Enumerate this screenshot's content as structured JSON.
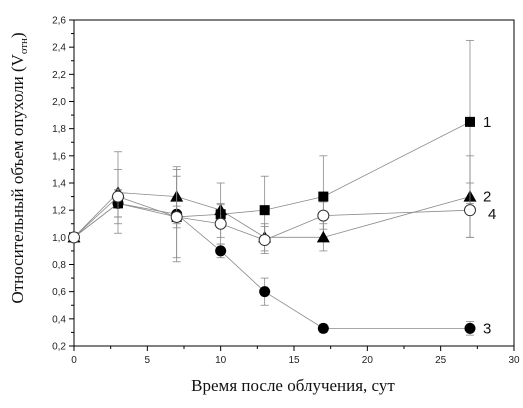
{
  "chart_data": {
    "type": "line",
    "xlabel": "Время после облучения, сут",
    "ylabel": "Относительный объем опухоли (V",
    "ylabel_sub": "отн",
    "ylabel_tail": ")",
    "xlim": [
      0,
      30
    ],
    "ylim": [
      0.2,
      2.6
    ],
    "x_ticks": [
      0,
      5,
      10,
      15,
      20,
      25,
      30
    ],
    "x_tick_labels": [
      "0",
      "5",
      "10",
      "15",
      "20",
      "25",
      "30"
    ],
    "y_ticks": [
      0.2,
      0.4,
      0.6,
      0.8,
      1.0,
      1.2,
      1.4,
      1.6,
      1.8,
      2.0,
      2.2,
      2.4,
      2.6
    ],
    "y_tick_labels": [
      "0,2",
      "0,4",
      "0,6",
      "0,8",
      "1,0",
      "1,2",
      "1,4",
      "1,6",
      "1,8",
      "2,0",
      "2,2",
      "2,4",
      "2,6"
    ],
    "grid": false,
    "series": [
      {
        "label": "1",
        "marker": "square",
        "x": [
          0,
          3,
          7,
          10,
          13,
          17,
          27
        ],
        "y": [
          1.0,
          1.25,
          1.15,
          1.17,
          1.2,
          1.3,
          1.85
        ],
        "err": [
          0,
          0.1,
          0.08,
          0.07,
          0.25,
          0.3,
          0.6
        ]
      },
      {
        "label": "2",
        "marker": "triangle",
        "x": [
          0,
          3,
          7,
          10,
          13,
          17,
          27
        ],
        "y": [
          1.0,
          1.33,
          1.3,
          1.2,
          1.0,
          1.0,
          1.3
        ],
        "err": [
          0,
          0.3,
          0.2,
          0.2,
          0.1,
          0.1,
          0.3
        ]
      },
      {
        "label": "3",
        "marker": "circle-filled",
        "x": [
          0,
          3,
          7,
          10,
          13,
          17,
          27
        ],
        "y": [
          1.0,
          1.25,
          1.17,
          0.9,
          0.6,
          0.33,
          0.33
        ],
        "err": [
          0,
          0.1,
          0.35,
          0.05,
          0.1,
          0.03,
          0.05
        ]
      },
      {
        "label": "4",
        "marker": "circle-open",
        "x": [
          0,
          3,
          7,
          10,
          13,
          17,
          27
        ],
        "y": [
          1.0,
          1.3,
          1.15,
          1.1,
          0.98,
          1.16,
          1.2
        ],
        "err": [
          0,
          0.2,
          0.3,
          0.15,
          0.1,
          0.1,
          0.2
        ]
      }
    ]
  }
}
